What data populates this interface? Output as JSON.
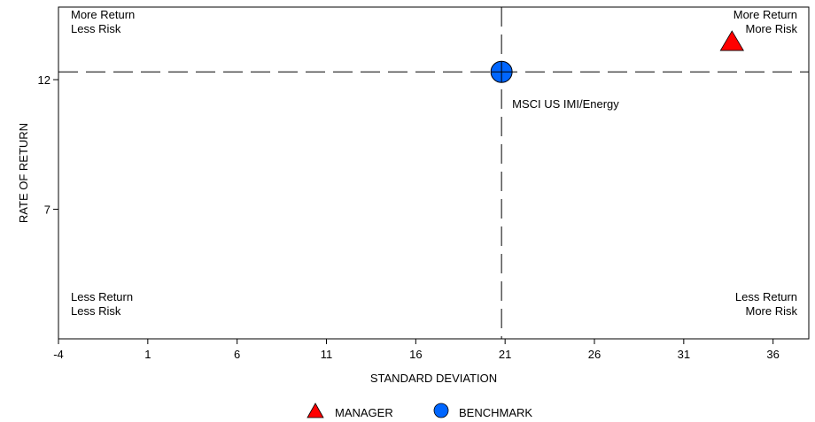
{
  "chart_data": {
    "type": "scatter",
    "title": "",
    "xlabel": "STANDARD DEVIATION",
    "ylabel": "RATE OF RETURN",
    "xlim": [
      -4,
      38
    ],
    "ylim": [
      2,
      14.8
    ],
    "xticks": [
      "-4",
      "1",
      "6",
      "11",
      "16",
      "21",
      "26",
      "31",
      "36"
    ],
    "yticks": [
      "7",
      "12"
    ],
    "grid": false,
    "legend_position": "bottom-center",
    "reference_lines": {
      "x": 20.8,
      "y": 12.3
    },
    "quadrant_labels": {
      "top_left": [
        "More Return",
        "Less Risk"
      ],
      "top_right": [
        "More Return",
        "More Risk"
      ],
      "bottom_left": [
        "Less Return",
        "Less Risk"
      ],
      "bottom_right": [
        "Less Return",
        "More Risk"
      ]
    },
    "series": [
      {
        "name": "MANAGER",
        "marker": "triangle",
        "color": "#ff0000",
        "x": 33.7,
        "y": 13.5,
        "label": ""
      },
      {
        "name": "BENCHMARK",
        "marker": "circle",
        "color": "#0066ff",
        "x": 20.8,
        "y": 12.3,
        "label": "MSCI US IMI/Energy"
      }
    ]
  }
}
